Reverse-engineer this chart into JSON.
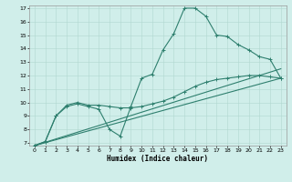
{
  "title": "",
  "xlabel": "Humidex (Indice chaleur)",
  "xlim": [
    -0.5,
    23.5
  ],
  "ylim": [
    6.8,
    17.2
  ],
  "xticks": [
    0,
    1,
    2,
    3,
    4,
    5,
    6,
    7,
    8,
    9,
    10,
    11,
    12,
    13,
    14,
    15,
    16,
    17,
    18,
    19,
    20,
    21,
    22,
    23
  ],
  "yticks": [
    7,
    8,
    9,
    10,
    11,
    12,
    13,
    14,
    15,
    16,
    17
  ],
  "background_color": "#d0eeea",
  "line_color": "#2e7f6e",
  "grid_color": "#b0d8d0",
  "line1_x": [
    0,
    1,
    2,
    3,
    4,
    5,
    6,
    7,
    8,
    9,
    10,
    11,
    12,
    13,
    14,
    15,
    16,
    17,
    18,
    19,
    20,
    21,
    22,
    23
  ],
  "line1_y": [
    6.8,
    7.1,
    9.0,
    9.7,
    9.9,
    9.7,
    9.5,
    8.0,
    7.5,
    9.7,
    11.8,
    12.1,
    13.9,
    15.1,
    17.0,
    17.0,
    16.4,
    15.0,
    14.9,
    14.3,
    13.9,
    13.4,
    13.2,
    11.8
  ],
  "line2_x": [
    0,
    1,
    2,
    3,
    4,
    5,
    6,
    7,
    8,
    9,
    10,
    11,
    12,
    13,
    14,
    15,
    16,
    17,
    18,
    19,
    20,
    21,
    22,
    23
  ],
  "line2_y": [
    6.8,
    7.1,
    9.0,
    9.8,
    10.0,
    9.8,
    9.8,
    9.7,
    9.6,
    9.6,
    9.7,
    9.9,
    10.1,
    10.4,
    10.8,
    11.2,
    11.5,
    11.7,
    11.8,
    11.9,
    12.0,
    12.0,
    11.9,
    11.8
  ],
  "line3_x": [
    0,
    23
  ],
  "line3_y": [
    6.8,
    11.8
  ],
  "line4_x": [
    0,
    23
  ],
  "line4_y": [
    6.8,
    11.8
  ]
}
